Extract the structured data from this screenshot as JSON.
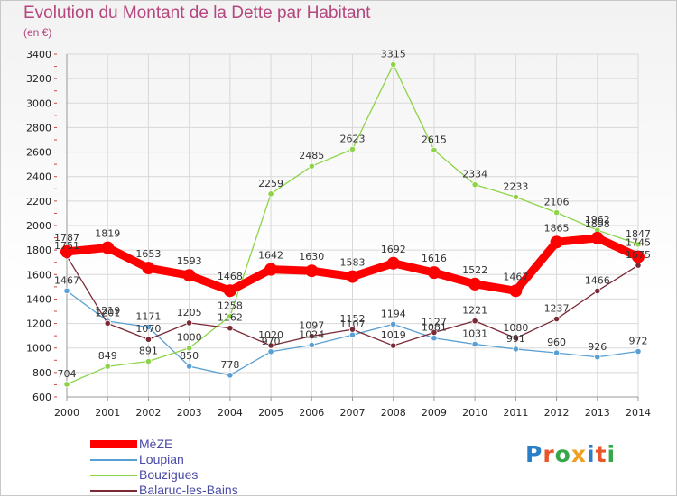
{
  "title": "Evolution du Montant de la Dette par Habitant",
  "subtitle": "(en €)",
  "logo": {
    "text": "Proxiti",
    "colors": [
      "#2b7fc8",
      "#e8552b",
      "#36a84a",
      "#f0a020",
      "#2b7fc8",
      "#e8552b",
      "#36a84a"
    ]
  },
  "chart_data": {
    "type": "line",
    "x": [
      "2000",
      "2001",
      "2002",
      "2003",
      "2004",
      "2005",
      "2006",
      "2007",
      "2008",
      "2009",
      "2010",
      "2011",
      "2012",
      "2013",
      "2014"
    ],
    "ylim": [
      600,
      3400
    ],
    "yticks": [
      "600",
      "800",
      "1000",
      "1200",
      "1400",
      "1600",
      "1800",
      "2000",
      "2200",
      "2400",
      "2600",
      "2800",
      "3000",
      "3200",
      "3400"
    ],
    "grid": true,
    "legend": "bottom-left",
    "series": [
      {
        "name": "Loupian",
        "color": "#5a9fd4",
        "values": [
          1467,
          1219,
          1171,
          850,
          778,
          970,
          1024,
          1107,
          1194,
          1081,
          1031,
          991,
          960,
          926,
          972
        ]
      },
      {
        "name": "Bouzigues",
        "color": "#8ed44a",
        "values": [
          704,
          849,
          891,
          1000,
          1258,
          2259,
          2485,
          2623,
          3315,
          2615,
          2334,
          2233,
          2106,
          1962,
          1847
        ]
      },
      {
        "name": "Balaruc-les-Bains",
        "color": "#7a2a36",
        "values": [
          1751,
          1201,
          1070,
          1205,
          1162,
          1020,
          1097,
          1152,
          1019,
          1127,
          1221,
          1080,
          1237,
          1466,
          1675
        ]
      },
      {
        "name": "MèZE",
        "color": "#ff0000",
        "values": [
          1787,
          1819,
          1653,
          1593,
          1468,
          1642,
          1630,
          1583,
          1692,
          1616,
          1522,
          1467,
          1865,
          1898,
          1745
        ]
      }
    ],
    "legend_entries": [
      {
        "name": "MèZE",
        "color": "#ff0000"
      },
      {
        "name": "Loupian",
        "color": "#5a9fd4"
      },
      {
        "name": "Bouzigues",
        "color": "#8ed44a"
      },
      {
        "name": "Balaruc-les-Bains",
        "color": "#7a2a36"
      }
    ]
  }
}
